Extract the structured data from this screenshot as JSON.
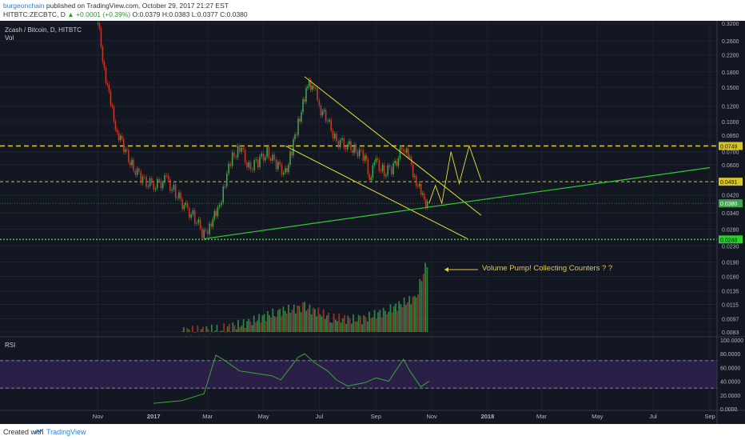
{
  "header": {
    "publisher_user": "burgeonchain",
    "published_text": "published on TradingView.com, October 29, 2017 21:27 EST",
    "symbol": "HITBTC:ZECBTC, D",
    "change": "▲ +0.0001 (+0.39%)",
    "ohlc": "O:0.0379 H:0.0383 L:0.0377 C:0.0380"
  },
  "chart": {
    "title": "Zcash / Bitcoin, D, HITBTC",
    "volume_label": "Vol",
    "rsi_label": "RSI",
    "annotation": "Volume Pump! Collecting Counters ? ?"
  },
  "footer": {
    "created_with": "Created with",
    "brand": "TradingView"
  },
  "colors": {
    "background": "#131722",
    "up": "#3fa34d",
    "down": "#c0392b",
    "trendline": "#e6e033",
    "support_line": "#2ecc2e",
    "level_line": "#d7c42a",
    "rsi_band": "#2a1f47",
    "rsi_line": "#3aa936"
  },
  "chart_data": {
    "type": "candlestick",
    "x_ticks": [
      "Nov",
      "2017",
      "Mar",
      "May",
      "Jul",
      "Sep",
      "Nov",
      "2018",
      "Mar",
      "May",
      "Jul",
      "Sep"
    ],
    "price_axis_ticks": [
      "0.3200",
      "0.2600",
      "0.2200",
      "0.1800",
      "0.1500",
      "0.1200",
      "0.1000",
      "0.0850",
      "0.0700",
      "0.0600",
      "0.0420",
      "0.0340",
      "0.0280",
      "0.0230",
      "0.0190",
      "0.0160",
      "0.0135",
      "0.0115",
      "0.0097",
      "0.0083"
    ],
    "price_labels": {
      "level_high": "0.0749",
      "level_mid": "0.0491",
      "last": "0.0380",
      "level_low": "0.0248"
    },
    "rsi_axis_ticks": [
      "100.0000",
      "80.0000",
      "60.0000",
      "40.0000",
      "20.0000",
      "0.0000"
    ],
    "close_series": [
      {
        "date": "2016-11-01",
        "close": 0.32
      },
      {
        "date": "2016-11-08",
        "close": 0.19
      },
      {
        "date": "2016-11-15",
        "close": 0.12
      },
      {
        "date": "2016-11-22",
        "close": 0.09
      },
      {
        "date": "2016-12-01",
        "close": 0.07
      },
      {
        "date": "2016-12-10",
        "close": 0.058
      },
      {
        "date": "2016-12-20",
        "close": 0.05
      },
      {
        "date": "2017-01-01",
        "close": 0.047
      },
      {
        "date": "2017-01-15",
        "close": 0.05
      },
      {
        "date": "2017-01-25",
        "close": 0.043
      },
      {
        "date": "2017-02-05",
        "close": 0.036
      },
      {
        "date": "2017-02-15",
        "close": 0.032
      },
      {
        "date": "2017-02-25",
        "close": 0.026
      },
      {
        "date": "2017-03-05",
        "close": 0.031
      },
      {
        "date": "2017-03-12",
        "close": 0.034
      },
      {
        "date": "2017-03-20",
        "close": 0.05
      },
      {
        "date": "2017-03-28",
        "close": 0.065
      },
      {
        "date": "2017-04-05",
        "close": 0.075
      },
      {
        "date": "2017-04-15",
        "close": 0.058
      },
      {
        "date": "2017-04-25",
        "close": 0.062
      },
      {
        "date": "2017-05-05",
        "close": 0.07
      },
      {
        "date": "2017-05-15",
        "close": 0.06
      },
      {
        "date": "2017-05-25",
        "close": 0.055
      },
      {
        "date": "2017-06-01",
        "close": 0.07
      },
      {
        "date": "2017-06-08",
        "close": 0.1
      },
      {
        "date": "2017-06-15",
        "close": 0.13
      },
      {
        "date": "2017-06-20",
        "close": 0.16
      },
      {
        "date": "2017-06-25",
        "close": 0.15
      },
      {
        "date": "2017-07-01",
        "close": 0.12
      },
      {
        "date": "2017-07-10",
        "close": 0.1
      },
      {
        "date": "2017-07-20",
        "close": 0.08
      },
      {
        "date": "2017-08-01",
        "close": 0.075
      },
      {
        "date": "2017-08-10",
        "close": 0.072
      },
      {
        "date": "2017-08-20",
        "close": 0.065
      },
      {
        "date": "2017-08-25",
        "close": 0.052
      },
      {
        "date": "2017-09-01",
        "close": 0.062
      },
      {
        "date": "2017-09-10",
        "close": 0.055
      },
      {
        "date": "2017-09-20",
        "close": 0.058
      },
      {
        "date": "2017-10-01",
        "close": 0.075
      },
      {
        "date": "2017-10-08",
        "close": 0.062
      },
      {
        "date": "2017-10-15",
        "close": 0.05
      },
      {
        "date": "2017-10-22",
        "close": 0.04
      },
      {
        "date": "2017-10-29",
        "close": 0.038
      }
    ],
    "volume_series": [
      {
        "date": "2017-02-01",
        "volume": 0.0084
      },
      {
        "date": "2017-03-15",
        "volume": 0.0086
      },
      {
        "date": "2017-04-15",
        "volume": 0.0093
      },
      {
        "date": "2017-05-15",
        "volume": 0.0105
      },
      {
        "date": "2017-06-15",
        "volume": 0.0112
      },
      {
        "date": "2017-07-15",
        "volume": 0.0098
      },
      {
        "date": "2017-08-15",
        "volume": 0.0096
      },
      {
        "date": "2017-09-15",
        "volume": 0.0108
      },
      {
        "date": "2017-10-15",
        "volume": 0.0125
      },
      {
        "date": "2017-10-29",
        "volume": 0.02
      }
    ],
    "rsi_series": [
      {
        "date": "2017-01-01",
        "rsi": 8
      },
      {
        "date": "2017-02-01",
        "rsi": 12
      },
      {
        "date": "2017-02-25",
        "rsi": 22
      },
      {
        "date": "2017-03-10",
        "rsi": 78
      },
      {
        "date": "2017-03-20",
        "rsi": 70
      },
      {
        "date": "2017-04-05",
        "rsi": 55
      },
      {
        "date": "2017-04-20",
        "rsi": 52
      },
      {
        "date": "2017-05-10",
        "rsi": 48
      },
      {
        "date": "2017-05-20",
        "rsi": 42
      },
      {
        "date": "2017-06-08",
        "rsi": 75
      },
      {
        "date": "2017-06-15",
        "rsi": 80
      },
      {
        "date": "2017-06-25",
        "rsi": 68
      },
      {
        "date": "2017-07-10",
        "rsi": 55
      },
      {
        "date": "2017-07-20",
        "rsi": 42
      },
      {
        "date": "2017-08-01",
        "rsi": 33
      },
      {
        "date": "2017-08-20",
        "rsi": 38
      },
      {
        "date": "2017-09-01",
        "rsi": 45
      },
      {
        "date": "2017-09-15",
        "rsi": 40
      },
      {
        "date": "2017-10-01",
        "rsi": 72
      },
      {
        "date": "2017-10-08",
        "rsi": 55
      },
      {
        "date": "2017-10-20",
        "rsi": 32
      },
      {
        "date": "2017-10-29",
        "rsi": 40
      }
    ],
    "rsi_bands": [
      70,
      30
    ]
  }
}
